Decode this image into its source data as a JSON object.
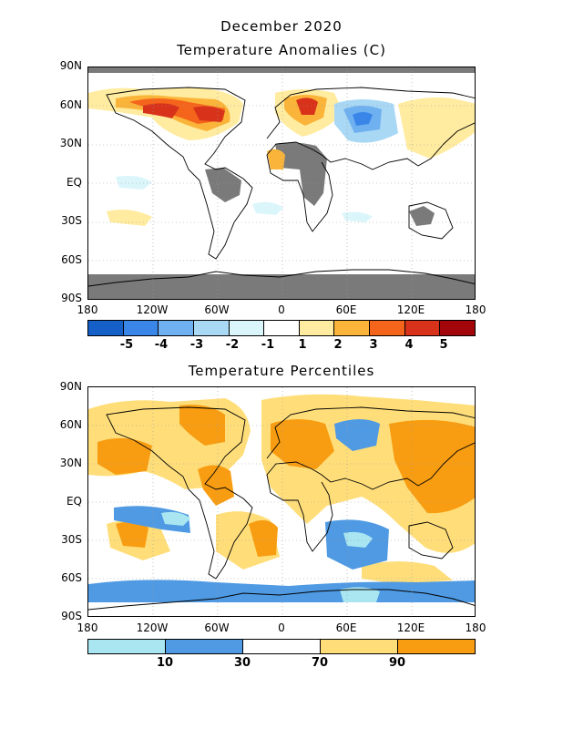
{
  "header": {
    "title_month": "December 2020"
  },
  "maps": [
    {
      "id": "anomalies",
      "title": "Temperature Anomalies (C)",
      "lat_labels": [
        "90N",
        "60N",
        "30N",
        "EQ",
        "30S",
        "60S",
        "90S"
      ],
      "lon_labels": [
        "180",
        "120W",
        "60W",
        "0",
        "60E",
        "120E",
        "180"
      ],
      "colorbar": {
        "colors": [
          "#1560c8",
          "#3a86e8",
          "#6fb0f0",
          "#a9d8f5",
          "#dbf6fb",
          "#ffffff",
          "#ffeca0",
          "#fbb43a",
          "#f4641a",
          "#d8321a",
          "#a3060a"
        ],
        "labels": [
          "-5",
          "-4",
          "-3",
          "-2",
          "-1",
          "1",
          "2",
          "3",
          "4",
          "5"
        ]
      }
    },
    {
      "id": "percentiles",
      "title": "Temperature Percentiles",
      "lat_labels": [
        "90N",
        "60N",
        "30N",
        "EQ",
        "30S",
        "60S",
        "90S"
      ],
      "lon_labels": [
        "180",
        "120W",
        "60W",
        "0",
        "60E",
        "120E",
        "180"
      ],
      "colorbar": {
        "colors": [
          "#a9e6f2",
          "#4f9ae3",
          "#ffffff",
          "#ffde7a",
          "#f89d12"
        ],
        "labels": [
          "10",
          "30",
          "70",
          "90"
        ]
      }
    }
  ],
  "palette": {
    "missing": "#7a7a7a",
    "grid": "#9a9a9a",
    "coast": "#000000"
  }
}
